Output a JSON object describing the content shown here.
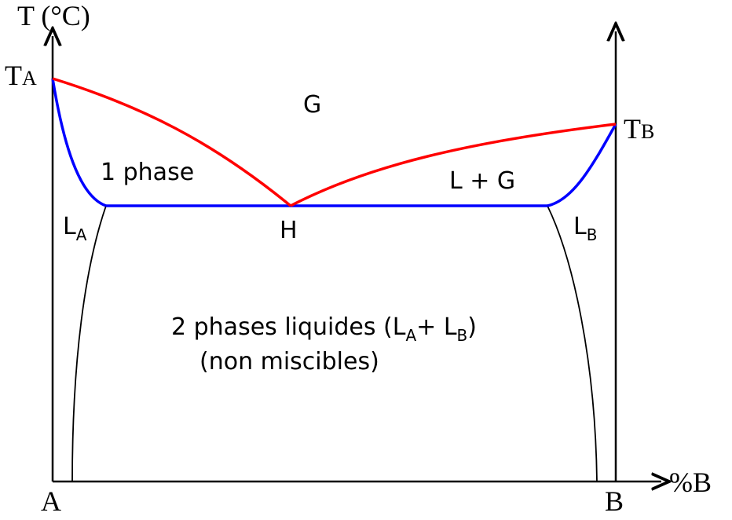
{
  "axes": {
    "y_label": "T (°C)",
    "x_label": "%B",
    "origin": "A",
    "end": "B"
  },
  "points": {
    "ta": {
      "main": "T",
      "sub": "A"
    },
    "tb": {
      "main": "T",
      "sub": "B"
    },
    "h": "H"
  },
  "regions": {
    "g": "G",
    "one_phase": "1 phase",
    "l_plus_g": "L + G",
    "la": {
      "main": "L",
      "sub": "A"
    },
    "lb": {
      "main": "L",
      "sub": "B"
    },
    "two_phases": [
      "2 phases liquides (L",
      "A",
      "+ L",
      "B",
      ")"
    ],
    "non_miscible": "(non miscibles)"
  }
}
